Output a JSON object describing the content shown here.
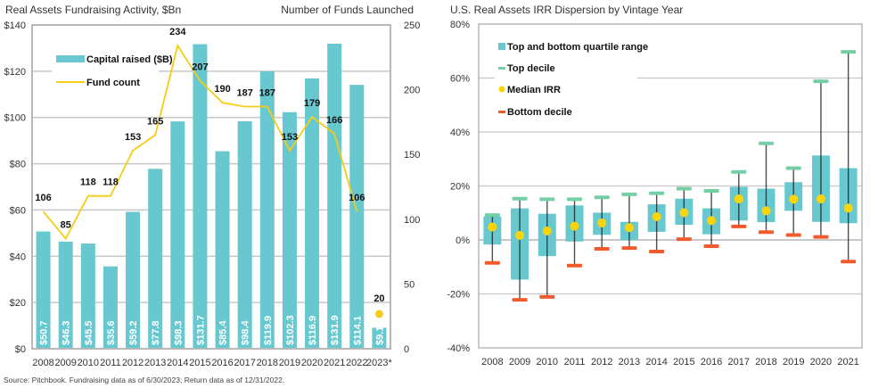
{
  "source_note": "Source: Pitchbook. Fundraising data as of 6/30/2023; Return data as of 12/31/2022.",
  "colors": {
    "bar": "#68c8cf",
    "line": "#f5cd18",
    "grid": "#c8c8c8",
    "frame": "#b8b8b8",
    "top_decile": "#74cfa4",
    "median": "#fbd50a",
    "bottom_decile": "#f05a2c",
    "whisker": "#222222"
  },
  "chart_data": [
    {
      "type": "bar",
      "title": "Real Assets Fundraising Activity, $Bn",
      "secondary_title": "Number of Funds Launched",
      "categories": [
        "2008",
        "2009",
        "2010",
        "2011",
        "2012",
        "2013",
        "2014",
        "2015",
        "2016",
        "2017",
        "2018",
        "2019",
        "2020",
        "2021",
        "2022",
        "2023*"
      ],
      "series": [
        {
          "name": "Capital raised ($B)",
          "type": "bar",
          "axis": "left",
          "values": [
            50.7,
            46.3,
            45.5,
            35.6,
            59.2,
            77.8,
            98.3,
            131.7,
            85.4,
            98.4,
            119.9,
            102.3,
            116.9,
            131.9,
            114.1,
            9.1
          ],
          "labels": [
            "$50.7",
            "$46.3",
            "$45.5",
            "$35.6",
            "$59.2",
            "$77.8",
            "$98.3",
            "$131.7",
            "$85.4",
            "$98.4",
            "$119.9",
            "$102.3",
            "$116.9",
            "$131.9",
            "$114.1",
            "$9.1"
          ]
        },
        {
          "name": "Fund count",
          "type": "line",
          "axis": "right",
          "values": [
            106,
            85,
            118,
            118,
            153,
            165,
            234,
            207,
            190,
            187,
            187,
            153,
            179,
            166,
            106,
            20
          ],
          "line_through_index": 14,
          "last_point_marker": true
        }
      ],
      "left_axis": {
        "ylim": [
          0,
          140
        ],
        "ticks": [
          0,
          20,
          40,
          60,
          80,
          100,
          120,
          140
        ],
        "tick_labels": [
          "$0",
          "$20",
          "$40",
          "$60",
          "$80",
          "$100",
          "$120",
          "$140"
        ]
      },
      "right_axis": {
        "ylim": [
          0,
          250
        ],
        "ticks": [
          0,
          50,
          100,
          150,
          200,
          250
        ],
        "tick_labels": [
          "0",
          "50",
          "100",
          "150",
          "200",
          "250"
        ]
      },
      "grid": true,
      "legend": {
        "placement": "top-left",
        "entries": [
          "Capital raised ($B)",
          "Fund count"
        ]
      }
    },
    {
      "type": "box",
      "title": "U.S. Real Assets IRR Dispersion by Vintage Year",
      "categories": [
        "2008",
        "2009",
        "2010",
        "2011",
        "2012",
        "2013",
        "2014",
        "2015",
        "2016",
        "2017",
        "2018",
        "2019",
        "2020",
        "2021"
      ],
      "top_decile": [
        9.2,
        15.3,
        15.1,
        15.1,
        15.8,
        16.9,
        17.3,
        19.0,
        18.2,
        25.2,
        35.8,
        26.6,
        58.8,
        69.7
      ],
      "quartile_top": [
        8.7,
        11.7,
        9.7,
        12.8,
        10.1,
        6.7,
        13.2,
        15.3,
        11.7,
        19.7,
        19.0,
        21.4,
        31.3,
        26.6
      ],
      "median": [
        4.8,
        1.7,
        3.3,
        5.1,
        6.3,
        4.6,
        8.6,
        10.1,
        7.2,
        15.2,
        10.8,
        15.1,
        15.2,
        11.8
      ],
      "quartile_bottom": [
        -1.7,
        -14.7,
        -6.0,
        -0.6,
        1.9,
        0.0,
        3.0,
        5.6,
        2.1,
        7.2,
        6.6,
        10.8,
        6.7,
        6.2
      ],
      "bottom_decile": [
        -8.5,
        -22.2,
        -21.1,
        -9.5,
        -3.3,
        -3.0,
        -4.3,
        0.3,
        -2.3,
        5.0,
        2.9,
        1.8,
        1.1,
        -8.0
      ],
      "ylim": [
        -40,
        80
      ],
      "ticks": [
        -40,
        -20,
        0,
        20,
        40,
        60,
        80
      ],
      "tick_labels": [
        "-40%",
        "-20%",
        "0%",
        "20%",
        "40%",
        "60%",
        "80%"
      ],
      "grid": true,
      "legend": {
        "placement": "top-left",
        "entries": [
          "Top and bottom quartile range",
          "Top decile",
          "Median IRR",
          "Bottom decile"
        ]
      }
    }
  ]
}
